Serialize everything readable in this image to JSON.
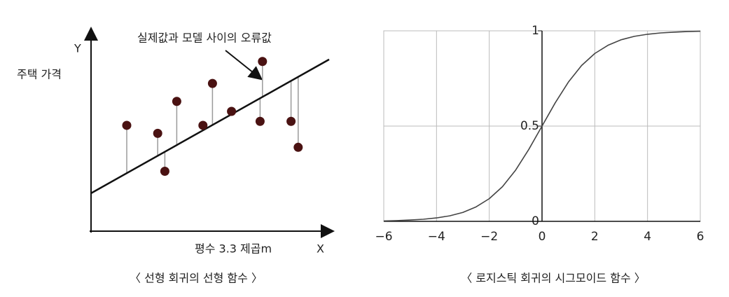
{
  "chart_data": [
    {
      "type": "scatter",
      "y_label": "Y",
      "y_title": "주택 가격",
      "x_label": "X",
      "x_title": "평수 3.3 제곱m",
      "annotation": "실제값과 모델 사이의 오류값",
      "caption": "〈 선형 회귀의 선형 함수 〉",
      "x": [
        1.5,
        2.8,
        3.1,
        3.6,
        4.7,
        5.1,
        5.9,
        7.2,
        7.1,
        8.4,
        8.7
      ],
      "values": [
        5.3,
        4.9,
        3.0,
        6.5,
        5.3,
        7.4,
        6.0,
        8.5,
        5.5,
        5.5,
        4.2
      ],
      "fit": {
        "intercept": 1.9,
        "slope": 0.67
      },
      "color": "#4a1212",
      "xlim": [
        0,
        10
      ],
      "ylim": [
        0,
        10
      ]
    },
    {
      "type": "line",
      "caption": "〈 로지스틱 회귀의 시그모이드 함수 〉",
      "x": [
        -6,
        -5.5,
        -5,
        -4.5,
        -4,
        -3.5,
        -3,
        -2.5,
        -2,
        -1.5,
        -1,
        -0.5,
        0,
        0.5,
        1,
        1.5,
        2,
        2.5,
        3,
        3.5,
        4,
        4.5,
        5,
        5.5,
        6
      ],
      "values": [
        0.002,
        0.004,
        0.007,
        0.011,
        0.018,
        0.029,
        0.047,
        0.076,
        0.119,
        0.182,
        0.269,
        0.378,
        0.5,
        0.622,
        0.731,
        0.818,
        0.881,
        0.924,
        0.953,
        0.971,
        0.982,
        0.989,
        0.993,
        0.996,
        0.998
      ],
      "color": "#444444",
      "xlim": [
        -6,
        6
      ],
      "ylim": [
        0,
        1
      ],
      "xticks": [
        {
          "value": -6,
          "label": "−6"
        },
        {
          "value": -4,
          "label": "−4"
        },
        {
          "value": -2,
          "label": "−2"
        },
        0,
        2,
        4,
        6
      ],
      "yticks": [
        0,
        0.5,
        1
      ],
      "grid": true
    }
  ]
}
